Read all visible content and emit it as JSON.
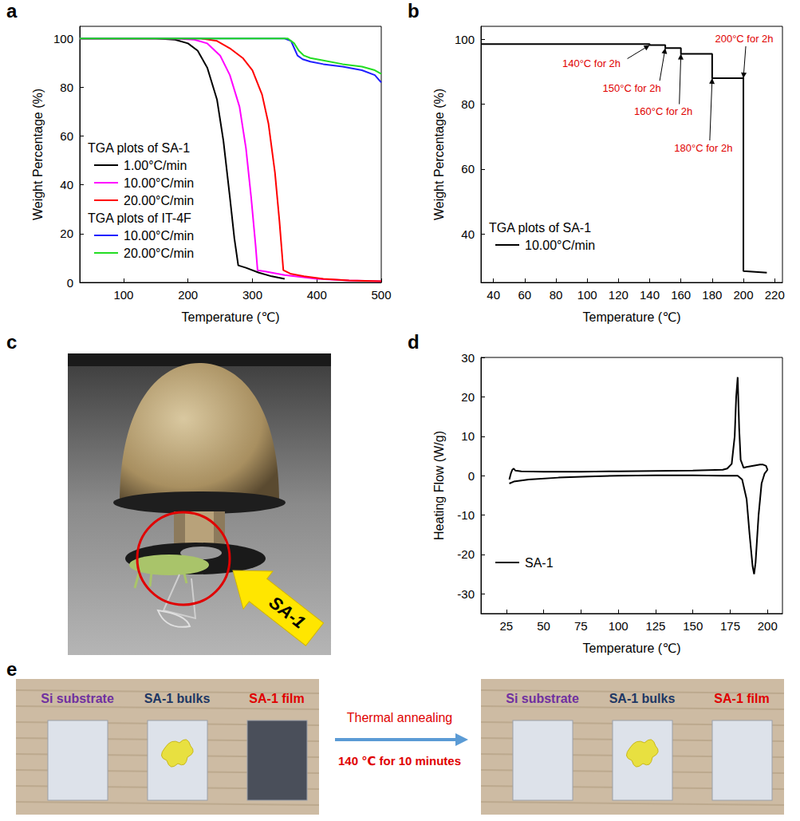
{
  "chart_data": [
    {
      "panel": "a",
      "type": "line",
      "x_label": "Temperature (℃)",
      "y_label": "Weight Percentage (%)",
      "xlim": [
        32,
        500
      ],
      "xticks": [
        100,
        200,
        300,
        400,
        500
      ],
      "ylim": [
        0,
        105
      ],
      "yticks": [
        0,
        20,
        40,
        60,
        80,
        100
      ],
      "series": [
        {
          "name": "1.00°C/min",
          "group": "TGA plots of SA-1",
          "color": "#000000",
          "x": [
            32,
            150,
            180,
            200,
            215,
            230,
            245,
            255,
            265,
            272,
            278,
            290,
            310,
            330,
            350
          ],
          "values": [
            100,
            100,
            99.5,
            98,
            95,
            88,
            75,
            58,
            35,
            18,
            7,
            6,
            4,
            2.5,
            1.5
          ]
        },
        {
          "name": "10.00°C/min",
          "group": "TGA plots of SA-1",
          "color": "#ff00ff",
          "x": [
            32,
            180,
            210,
            230,
            250,
            265,
            280,
            290,
            298,
            305,
            308,
            320,
            350,
            400,
            450,
            500
          ],
          "values": [
            100,
            100,
            99.5,
            98,
            93,
            85,
            72,
            55,
            35,
            15,
            5,
            4.5,
            3,
            1.5,
            0.8,
            0.5
          ]
        },
        {
          "name": "20.00°C/min",
          "group": "TGA plots of SA-1",
          "color": "#ff0000",
          "x": [
            32,
            220,
            245,
            265,
            285,
            300,
            315,
            325,
            335,
            342,
            348,
            360,
            380,
            410,
            450,
            500
          ],
          "values": [
            100,
            100,
            99,
            96,
            92,
            87,
            77,
            65,
            45,
            25,
            5,
            3.5,
            2.5,
            1.5,
            0.8,
            0.5
          ]
        },
        {
          "name": "10.00°C/min",
          "group": "TGA plots of IT-4F",
          "color": "#1f1fff",
          "x": [
            32,
            350,
            360,
            365,
            370,
            378,
            390,
            410,
            440,
            470,
            490,
            500
          ],
          "values": [
            100,
            100,
            99,
            96,
            93,
            91.5,
            90.5,
            89.5,
            88.5,
            87,
            85,
            82
          ]
        },
        {
          "name": "20.00°C/min",
          "group": "TGA plots of IT-4F",
          "color": "#22dd22",
          "x": [
            32,
            355,
            365,
            372,
            380,
            390,
            410,
            440,
            470,
            490,
            500
          ],
          "values": [
            100,
            100,
            98,
            95,
            93,
            92,
            91,
            89.5,
            88.5,
            87,
            85.5
          ]
        }
      ]
    },
    {
      "panel": "b",
      "type": "line",
      "x_label": "Temperature (℃)",
      "y_label": "Weight Percentage (%)",
      "xlim": [
        32,
        225
      ],
      "xticks": [
        40,
        60,
        80,
        100,
        120,
        140,
        160,
        180,
        200,
        220
      ],
      "ylim": [
        25,
        104
      ],
      "yticks": [
        40,
        60,
        80,
        100
      ],
      "series": [
        {
          "name": "10.00°C/min",
          "group": "TGA plots of SA-1",
          "color": "#000000",
          "x": [
            32,
            140,
            140,
            150,
            150,
            160,
            160,
            180,
            180,
            200,
            200,
            215
          ],
          "values": [
            98.5,
            98.5,
            98.2,
            98.2,
            97.3,
            97.3,
            95.5,
            95.5,
            88,
            88,
            28.5,
            28
          ]
        }
      ],
      "annotations": [
        {
          "text": "140°C for 2h",
          "x": 140,
          "y": 98.2
        },
        {
          "text": "150°C for 2h",
          "x": 150,
          "y": 97.3
        },
        {
          "text": "160°C for 2h",
          "x": 160,
          "y": 95.5
        },
        {
          "text": "180°C for 2h",
          "x": 180,
          "y": 88
        },
        {
          "text": "200°C for 2h",
          "x": 200,
          "y": 88
        }
      ]
    },
    {
      "panel": "d",
      "type": "line",
      "x_label": "Temperature (℃)",
      "y_label": "Heating Flow (W/g)",
      "xlim": [
        8,
        210
      ],
      "xticks": [
        25,
        50,
        75,
        100,
        125,
        150,
        175,
        200
      ],
      "ylim": [
        -35,
        30
      ],
      "yticks": [
        -30,
        -20,
        -10,
        0,
        10,
        20,
        30
      ],
      "series": [
        {
          "name": "SA-1",
          "color": "#000000",
          "x": [
            27,
            30,
            40,
            60,
            80,
            100,
            125,
            150,
            170,
            180,
            183,
            186,
            188,
            190,
            191,
            192,
            194,
            196,
            198,
            200,
            199,
            197,
            195,
            192,
            189,
            186,
            184,
            182,
            181,
            180,
            179,
            178,
            176,
            173,
            170,
            150,
            125,
            100,
            75,
            50,
            35,
            31,
            30,
            29,
            28,
            27
          ],
          "values": [
            -2,
            -1.5,
            -1,
            -0.5,
            -0.2,
            0,
            0.1,
            0.1,
            0,
            0,
            -1,
            -6,
            -15,
            -23,
            -25,
            -22,
            -10,
            -2,
            0.5,
            1.5,
            2.5,
            2.8,
            2.8,
            2.6,
            2.4,
            2.2,
            2,
            4,
            12,
            25,
            20,
            10,
            3,
            1.8,
            1.5,
            1.3,
            1.2,
            1.1,
            1,
            1,
            1.1,
            1.3,
            1.8,
            1.5,
            0.5,
            -1
          ]
        }
      ]
    }
  ],
  "photos": [
    {
      "panel": "c",
      "label": "SA-1"
    },
    {
      "panel": "e",
      "before": [
        "Si substrate",
        "SA-1 bulks",
        "SA-1 film"
      ],
      "process": "Thermal annealing",
      "condition": "140 ℃ for 10 minutes",
      "after": [
        "Si substrate",
        "SA-1 bulks",
        "SA-1 film"
      ]
    }
  ]
}
